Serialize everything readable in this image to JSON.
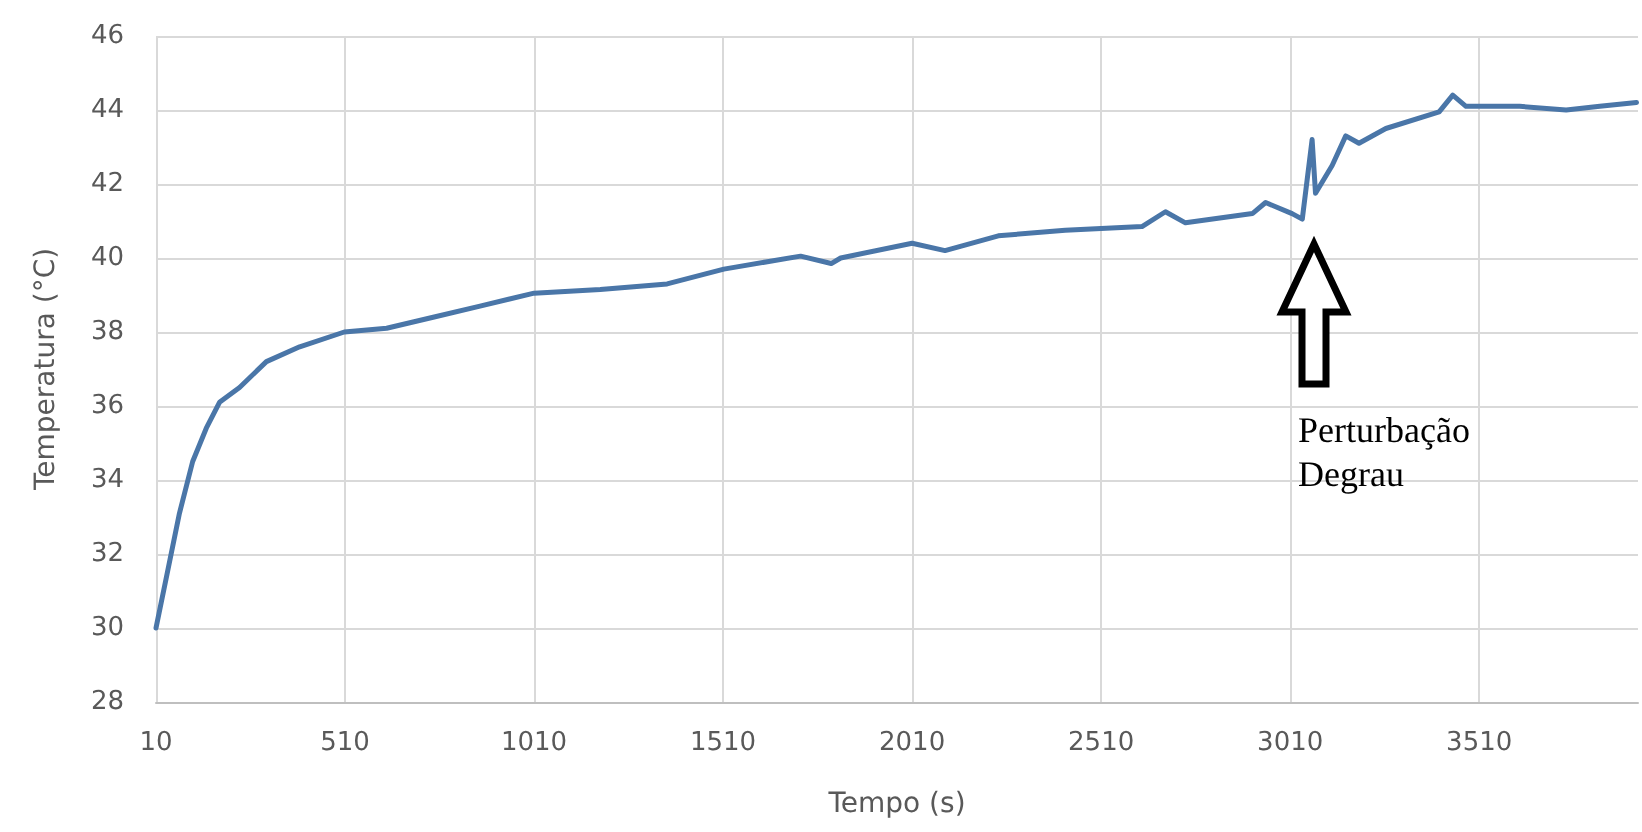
{
  "chart_data": {
    "type": "line",
    "xlabel": "Tempo (s)",
    "ylabel": "Temperatura (°C)",
    "xlim": [
      10,
      3930
    ],
    "xticks": [
      10,
      510,
      1010,
      1510,
      2010,
      2510,
      3010,
      3510
    ],
    "ylim": [
      28,
      46
    ],
    "yticks": [
      28,
      30,
      32,
      34,
      36,
      38,
      40,
      42,
      44,
      46
    ],
    "grid": true,
    "marker": "none",
    "line_style": "solid",
    "series": [
      {
        "color": "#4a76a8",
        "x": [
          10,
          36,
          72,
          107,
          143,
          178,
          231,
          302,
          390,
          508,
          620,
          743,
          867,
          1010,
          1185,
          1362,
          1512,
          1627,
          1715,
          1796,
          1821,
          2010,
          2097,
          2238,
          2415,
          2618,
          2680,
          2733,
          2910,
          2945,
          3015,
          3042,
          3068,
          3077,
          3121,
          3157,
          3192,
          3263,
          3404,
          3440,
          3475,
          3617,
          3740,
          3829,
          3926
        ],
        "values": [
          30.0,
          31.3,
          33.1,
          34.5,
          35.4,
          36.1,
          36.5,
          37.2,
          37.6,
          38.0,
          38.1,
          38.4,
          38.7,
          39.05,
          39.15,
          39.3,
          39.7,
          39.9,
          40.05,
          39.85,
          40.0,
          40.4,
          40.2,
          40.6,
          40.75,
          40.85,
          41.25,
          40.95,
          41.2,
          41.5,
          41.2,
          41.05,
          43.2,
          41.75,
          42.5,
          43.3,
          43.1,
          43.5,
          43.95,
          44.4,
          44.1,
          44.1,
          44.0,
          44.1,
          44.2
        ]
      }
    ],
    "annotations": [
      "Perturbação\nDegrau"
    ]
  }
}
